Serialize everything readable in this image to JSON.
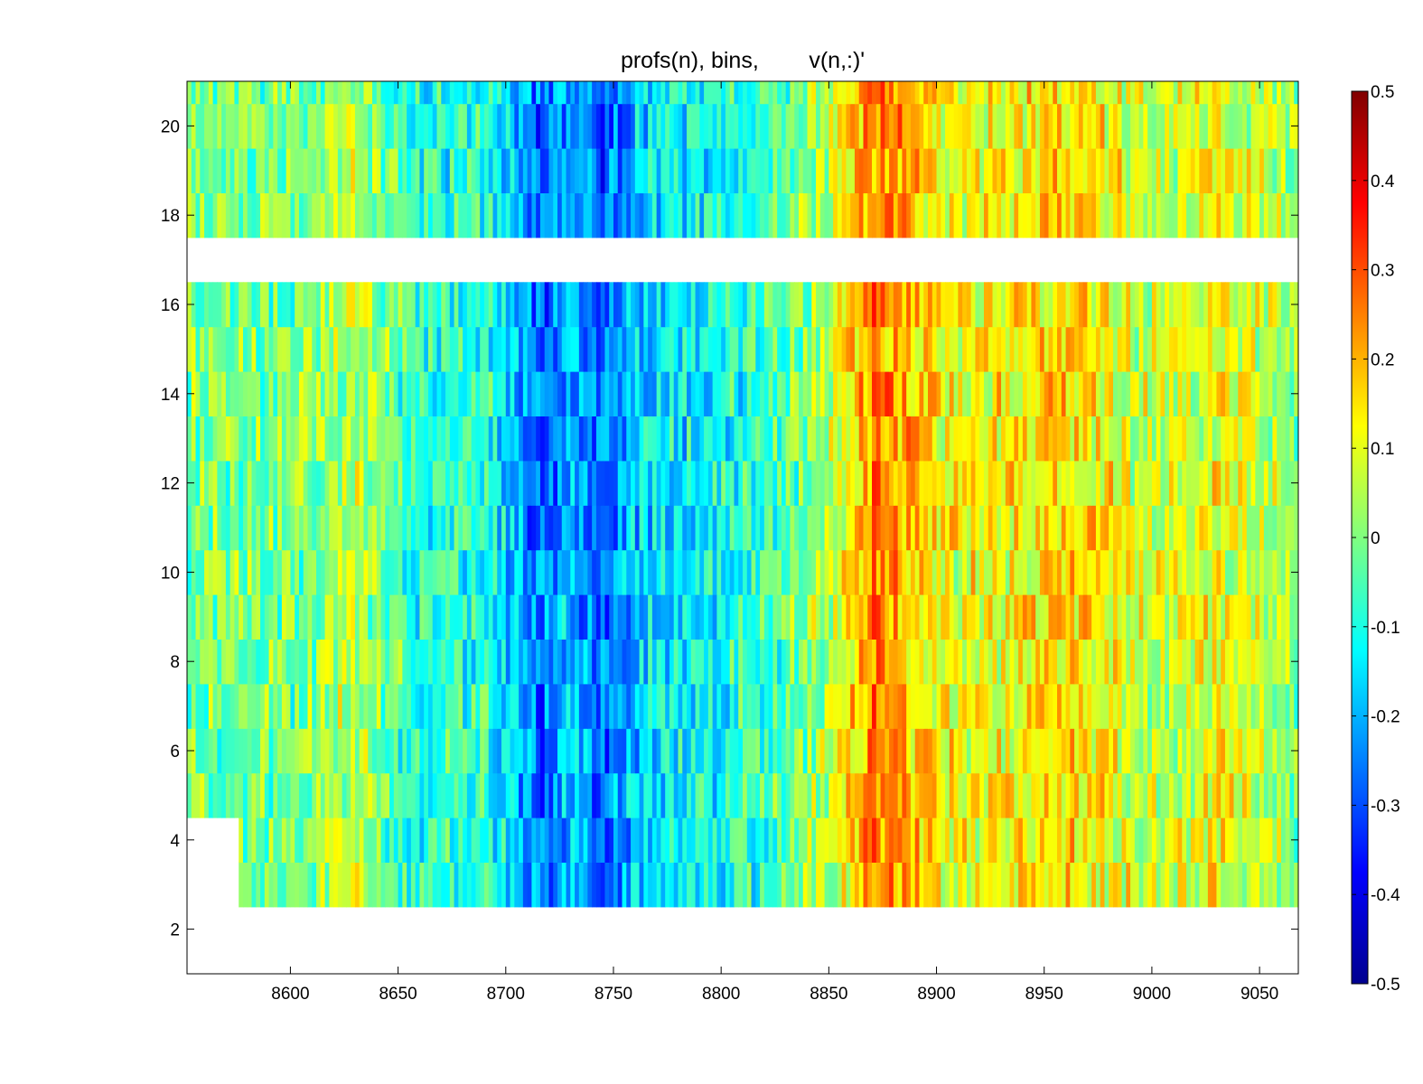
{
  "chart_data": {
    "type": "heatmap",
    "title": "profs(n), bins,        v(n,:)'",
    "xlabel": "",
    "ylabel": "",
    "xlim": [
      8552,
      9068
    ],
    "ylim": [
      1,
      21
    ],
    "x_ticks": [
      8600,
      8650,
      8700,
      8750,
      8800,
      8850,
      8900,
      8950,
      9000,
      9050
    ],
    "x_tick_labels": [
      "8600",
      "8650",
      "8700",
      "8750",
      "8800",
      "8850",
      "8900",
      "8950",
      "9000",
      "9050"
    ],
    "y_ticks": [
      2,
      4,
      6,
      8,
      10,
      12,
      14,
      16,
      18,
      20
    ],
    "y_tick_labels": [
      "2",
      "4",
      "6",
      "8",
      "10",
      "12",
      "14",
      "16",
      "18",
      "20"
    ],
    "rows": [
      3,
      4,
      5,
      6,
      7,
      8,
      9,
      10,
      11,
      12,
      13,
      14,
      15,
      16,
      18,
      19,
      20,
      21
    ],
    "row_centers_note": "",
    "missing_rows": [
      17
    ],
    "colormap": "jet",
    "clim": [
      -0.5,
      0.5
    ],
    "colorbar": {
      "ticks": [
        0.5,
        0.4,
        0.3,
        0.2,
        0.1,
        0,
        -0.1,
        -0.2,
        -0.3,
        -0.4,
        -0.5
      ],
      "tick_labels": [
        "0.5",
        "0.4",
        "0.3",
        "0.2",
        "0.1",
        "0",
        "-0.1",
        "-0.2",
        "-0.3",
        "-0.4",
        "-0.5"
      ],
      "placement": "right"
    },
    "feature_profile": [
      {
        "x": 8552,
        "value": 0.0
      },
      {
        "x": 8600,
        "value": -0.02
      },
      {
        "x": 8630,
        "value": 0.06
      },
      {
        "x": 8660,
        "value": -0.1
      },
      {
        "x": 8690,
        "value": -0.08
      },
      {
        "x": 8716,
        "value": -0.28
      },
      {
        "x": 8730,
        "value": -0.18
      },
      {
        "x": 8745,
        "value": -0.27
      },
      {
        "x": 8770,
        "value": -0.15
      },
      {
        "x": 8800,
        "value": -0.12
      },
      {
        "x": 8830,
        "value": -0.04
      },
      {
        "x": 8850,
        "value": 0.06
      },
      {
        "x": 8872,
        "value": 0.25
      },
      {
        "x": 8886,
        "value": 0.2
      },
      {
        "x": 8910,
        "value": 0.1
      },
      {
        "x": 8935,
        "value": 0.13
      },
      {
        "x": 8965,
        "value": 0.16
      },
      {
        "x": 9000,
        "value": 0.06
      },
      {
        "x": 9030,
        "value": 0.12
      },
      {
        "x": 9068,
        "value": 0.0
      }
    ]
  }
}
